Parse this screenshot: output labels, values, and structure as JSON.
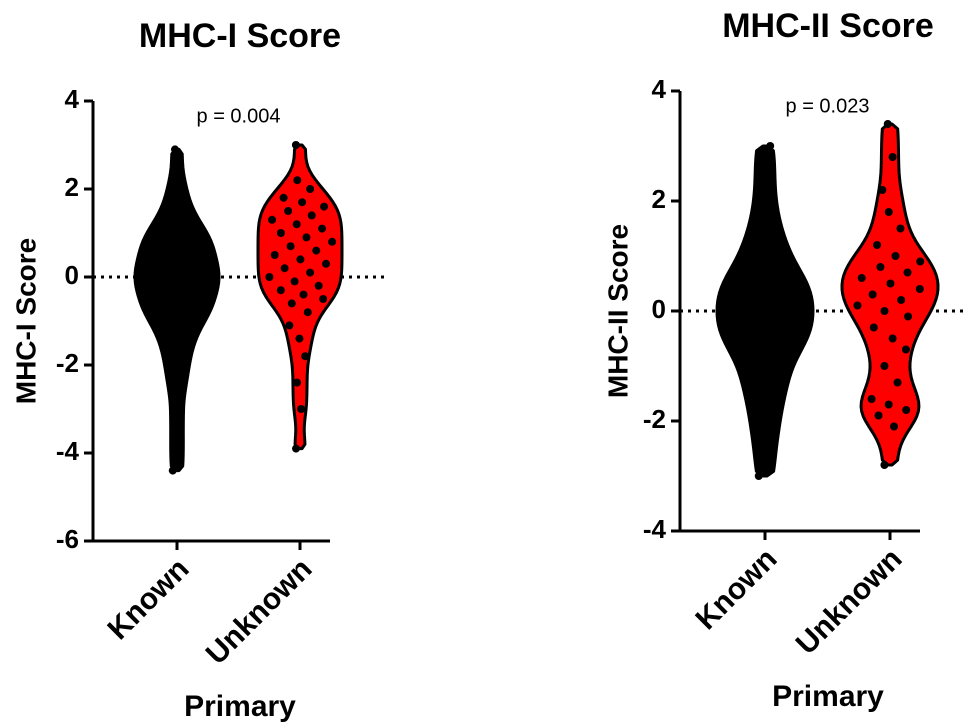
{
  "chart_data": [
    {
      "type": "violin",
      "title": "MHC-I Score",
      "annotation": "p = 0.004",
      "x_label": "Primary",
      "y_label": "MHC-I Score",
      "categories": [
        "Known",
        "Unknown"
      ],
      "colors": [
        "#000000",
        "#ff0000"
      ],
      "values": [
        [
          -4.4,
          -3.8,
          -3.2,
          -2.6,
          -2.2,
          -1.9,
          -1.6,
          -1.4,
          -1.2,
          -1.0,
          -0.9,
          -0.8,
          -0.7,
          -0.6,
          -0.5,
          -0.4,
          -0.3,
          -0.2,
          -0.1,
          0,
          0,
          0.1,
          0.2,
          0.3,
          0.4,
          0.5,
          0.6,
          0.7,
          0.8,
          0.9,
          1.0,
          1.1,
          1.3,
          1.5,
          1.8,
          2.2,
          2.9
        ],
        [
          -3.9,
          -3.0,
          -2.4,
          -1.8,
          -1.4,
          -1.1,
          -0.8,
          -0.6,
          -0.5,
          -0.4,
          -0.3,
          -0.2,
          -0.1,
          0,
          0.1,
          0.2,
          0.3,
          0.4,
          0.5,
          0.6,
          0.7,
          0.8,
          0.9,
          1.0,
          1.1,
          1.2,
          1.3,
          1.4,
          1.5,
          1.6,
          1.7,
          1.8,
          2.0,
          2.2,
          3.0
        ]
      ],
      "reference_line": 0,
      "ylim": [
        -6,
        4
      ],
      "yticks": [
        -6,
        -4,
        -2,
        0,
        2,
        4
      ]
    },
    {
      "type": "violin",
      "title": "MHC-II Score",
      "annotation": "p = 0.023",
      "x_label": "Primary",
      "y_label": "MHC-II Score",
      "categories": [
        "Known",
        "Unknown"
      ],
      "colors": [
        "#000000",
        "#ff0000"
      ],
      "values": [
        [
          -3.0,
          -2.5,
          -2.1,
          -1.8,
          -1.5,
          -1.3,
          -1.1,
          -0.9,
          -0.7,
          -0.6,
          -0.5,
          -0.4,
          -0.3,
          -0.2,
          -0.1,
          0,
          0.1,
          0.2,
          0.3,
          0.4,
          0.5,
          0.6,
          0.7,
          0.9,
          1.1,
          1.3,
          1.6,
          2.0,
          2.5,
          3.0
        ],
        [
          -2.8,
          -2.1,
          -1.9,
          -1.8,
          -1.7,
          -1.6,
          -1.3,
          -1.0,
          -0.7,
          -0.5,
          -0.3,
          -0.1,
          0,
          0.1,
          0.2,
          0.3,
          0.4,
          0.5,
          0.6,
          0.7,
          0.8,
          0.9,
          1.0,
          1.2,
          1.5,
          1.8,
          2.2,
          2.8,
          3.4
        ]
      ],
      "reference_line": 0,
      "ylim": [
        -4,
        4
      ],
      "yticks": [
        -4,
        -2,
        0,
        2,
        4
      ]
    }
  ]
}
